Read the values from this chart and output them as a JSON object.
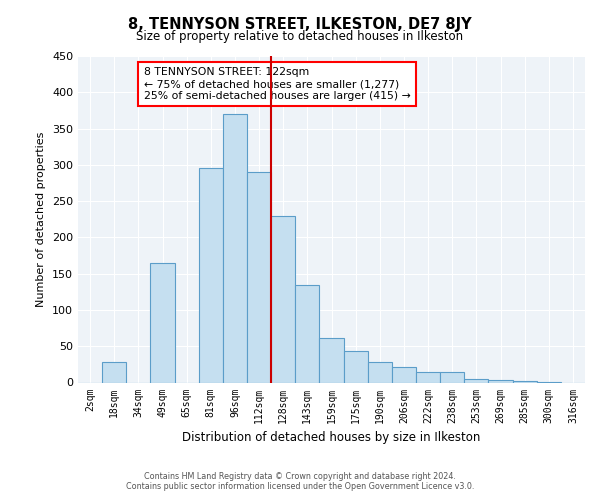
{
  "title": "8, TENNYSON STREET, ILKESTON, DE7 8JY",
  "subtitle": "Size of property relative to detached houses in Ilkeston",
  "xlabel": "Distribution of detached houses by size in Ilkeston",
  "ylabel": "Number of detached properties",
  "bar_labels": [
    "2sqm",
    "18sqm",
    "34sqm",
    "49sqm",
    "65sqm",
    "81sqm",
    "96sqm",
    "112sqm",
    "128sqm",
    "143sqm",
    "159sqm",
    "175sqm",
    "190sqm",
    "206sqm",
    "222sqm",
    "238sqm",
    "253sqm",
    "269sqm",
    "285sqm",
    "300sqm",
    "316sqm"
  ],
  "bar_values": [
    0,
    28,
    0,
    165,
    0,
    295,
    370,
    290,
    230,
    135,
    62,
    43,
    28,
    22,
    14,
    15,
    5,
    4,
    2,
    1,
    0
  ],
  "bar_color": "#c5dff0",
  "bar_edge_color": "#5b9dc9",
  "vline_color": "#cc0000",
  "ylim": [
    0,
    450
  ],
  "yticks": [
    0,
    50,
    100,
    150,
    200,
    250,
    300,
    350,
    400,
    450
  ],
  "annotation_title": "8 TENNYSON STREET: 122sqm",
  "annotation_line1": "← 75% of detached houses are smaller (1,277)",
  "annotation_line2": "25% of semi-detached houses are larger (415) →",
  "footer_line1": "Contains HM Land Registry data © Crown copyright and database right 2024.",
  "footer_line2": "Contains public sector information licensed under the Open Government Licence v3.0.",
  "bg_color": "#ffffff",
  "plot_bg_color": "#eef3f8",
  "grid_color": "#ffffff"
}
